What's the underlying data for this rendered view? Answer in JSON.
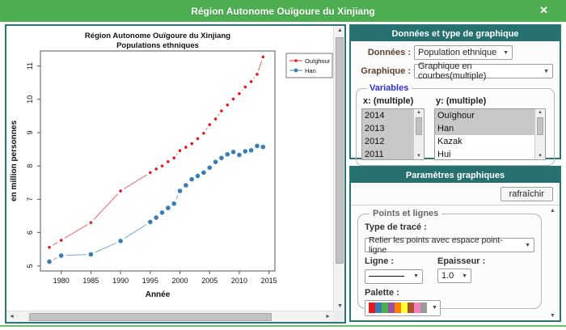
{
  "window": {
    "title": "Région Autonome Ouïgoure du Xinjiang",
    "close_label": "✕"
  },
  "chart_data": {
    "type": "line",
    "title_line1": "Région Autonome Ouïgoure du Xinjiang",
    "title_line2": "Populations ethniques",
    "xlabel": "Année",
    "ylabel": "en million personnes",
    "x": [
      1978,
      1980,
      1985,
      1990,
      1995,
      1996,
      1997,
      1998,
      1999,
      2000,
      2001,
      2002,
      2003,
      2004,
      2005,
      2006,
      2007,
      2008,
      2009,
      2010,
      2011,
      2012,
      2013,
      2014
    ],
    "series": [
      {
        "name": "Ouïghour",
        "color": "#e31a1c",
        "values": [
          5.56,
          5.77,
          6.3,
          7.25,
          7.8,
          7.91,
          8.0,
          8.13,
          8.24,
          8.46,
          8.56,
          8.67,
          8.82,
          8.98,
          9.24,
          9.41,
          9.65,
          9.83,
          10.01,
          10.17,
          10.37,
          10.53,
          10.75,
          11.27
        ]
      },
      {
        "name": "Han",
        "color": "#377eb8",
        "values": [
          5.13,
          5.31,
          5.35,
          5.75,
          6.32,
          6.45,
          6.6,
          6.74,
          6.87,
          7.25,
          7.42,
          7.6,
          7.7,
          7.8,
          7.95,
          8.12,
          8.24,
          8.35,
          8.42,
          8.33,
          8.44,
          8.47,
          8.6,
          8.57
        ]
      }
    ],
    "xticks": [
      1980,
      1985,
      1990,
      1995,
      2000,
      2005,
      2010,
      2015
    ],
    "yticks": [
      5,
      6,
      7,
      8,
      9,
      10,
      11
    ],
    "xlim": [
      1976.5,
      2016
    ],
    "ylim": [
      4.85,
      11.45
    ],
    "grid": false,
    "legend_position": "top-right-outside"
  },
  "panel1": {
    "header": "Données et type de graphique",
    "donnees_label": "Données :",
    "donnees_value": "Population ethnique",
    "graphique_label": "Graphique :",
    "graphique_value": "Graphique en courbes(multiple)",
    "variables_legend": "Variables",
    "x_list_label": "x: (multiple)",
    "y_list_label": "y: (multiple)",
    "x_list": {
      "items": [
        "2014",
        "2013",
        "2012",
        "2011"
      ],
      "selected_indexes": [
        0,
        1,
        2,
        3
      ]
    },
    "y_list": {
      "items": [
        "Ouïghour",
        "Han",
        "Kazak",
        "Hui"
      ],
      "selected_indexes": [
        0,
        1
      ]
    }
  },
  "panel2": {
    "header": "Paramètres graphiques",
    "refresh_label": "rafraîchir",
    "fieldset_legend": "Points et lignes",
    "trace_label": "Type de tracé :",
    "trace_value": "Relier les points avec espace point-ligne",
    "ligne_label": "Ligne :",
    "epaisseur_label": "Epaisseur :",
    "epaisseur_value": "1.0",
    "palette_label": "Palette :",
    "palette_colors": [
      "#e41a1c",
      "#377eb8",
      "#4daf4a",
      "#984ea3",
      "#ff7f00",
      "#ffff33",
      "#a65628",
      "#f781bf",
      "#999999"
    ]
  }
}
